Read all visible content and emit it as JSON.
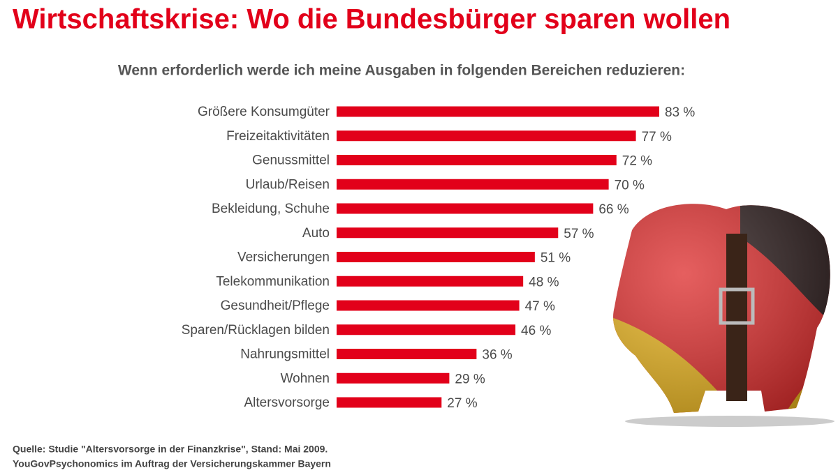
{
  "chart_data": {
    "type": "bar",
    "orientation": "horizontal",
    "title": "Wirtschaftskrise: Wo die Bundesbürger sparen wollen",
    "subtitle": "Wenn erforderlich werde ich meine Ausgaben in folgenden Bereichen reduzieren:",
    "categories": [
      "Größere Konsumgüter",
      "Freizeitaktivitäten",
      "Genussmittel",
      "Urlaub/Reisen",
      "Bekleidung, Schuhe",
      "Auto",
      "Versicherungen",
      "Telekommunikation",
      "Gesundheit/Pflege",
      "Sparen/Rücklagen bilden",
      "Nahrungsmittel",
      "Wohnen",
      "Altersvorsorge"
    ],
    "values": [
      83,
      77,
      72,
      70,
      66,
      57,
      51,
      48,
      47,
      46,
      36,
      29,
      27
    ],
    "value_labels": [
      "83 %",
      "77 %",
      "72 %",
      "70 %",
      "66 %",
      "57 %",
      "51 %",
      "48 %",
      "47 %",
      "46 %",
      "36 %",
      "29 %",
      "27 %"
    ],
    "color": "#e2001a",
    "source": [
      "Quelle: Studie \"Altersvorsorge in der Finanzkrise\", Stand: Mai 2009.",
      "YouGovPsychonomics im Auftrag der Versicherungskammer Bayern"
    ]
  }
}
